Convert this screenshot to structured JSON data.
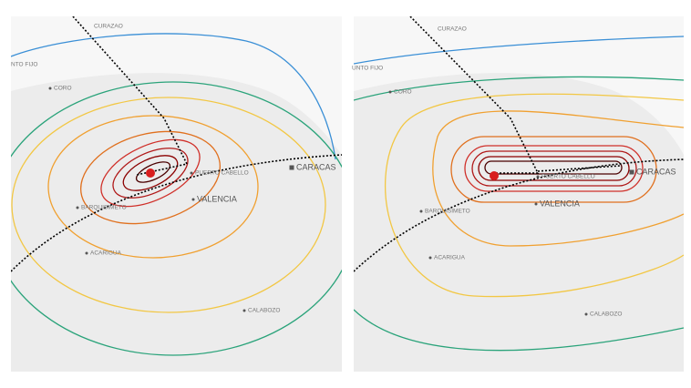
{
  "panels": [
    {
      "labels": [
        {
          "text": "CURAZAO"
        },
        {
          "text": "NTO FIJO"
        },
        {
          "text": "CORO"
        },
        {
          "text": "PUERTO CABELLO"
        },
        {
          "text": "CARACAS"
        },
        {
          "text": "VALENCIA"
        },
        {
          "text": "BARQUISIMETO"
        },
        {
          "text": "ACARIGUA"
        },
        {
          "text": "CALABOZO"
        }
      ]
    },
    {
      "labels": [
        {
          "text": "CURAZAO"
        },
        {
          "text": "UNTO FIJO"
        },
        {
          "text": "CORO"
        },
        {
          "text": "PUERTO CABELLO"
        },
        {
          "text": "CARACAS"
        },
        {
          "text": "VALENCIA"
        },
        {
          "text": "BARQUISIMETO"
        },
        {
          "text": "ACARIGUA"
        },
        {
          "text": "CALABOZO"
        }
      ]
    }
  ]
}
